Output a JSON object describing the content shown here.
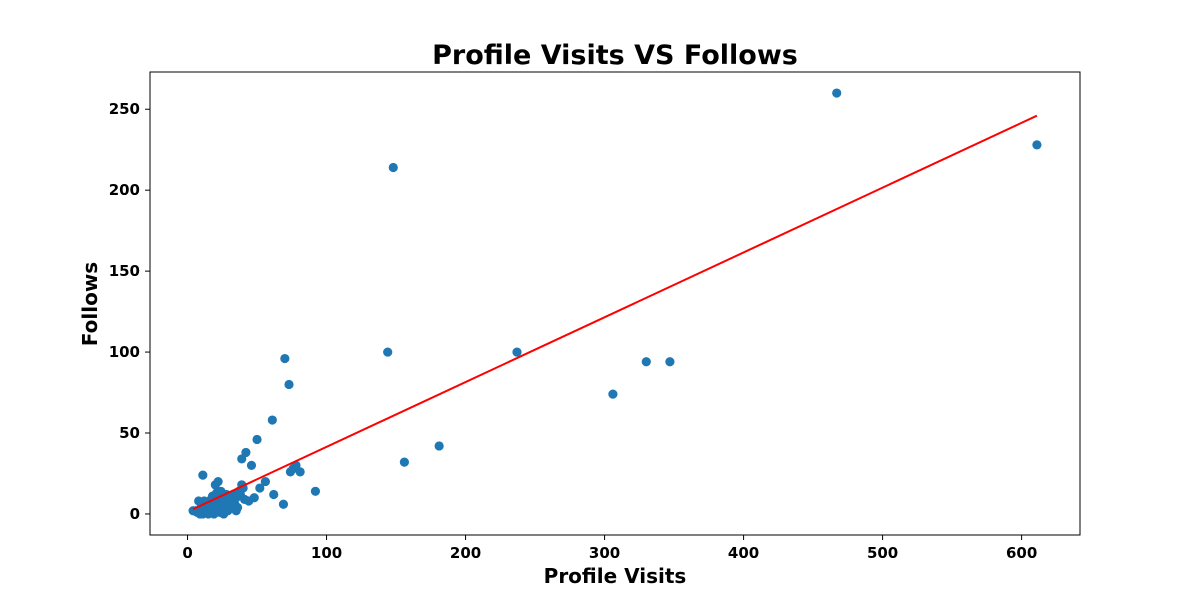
{
  "chart_data": {
    "type": "scatter",
    "title": "Profile Visits VS Follows",
    "xlabel": "Profile Visits",
    "ylabel": "Follows",
    "xlim": [
      -27,
      642
    ],
    "ylim": [
      -13,
      273
    ],
    "xticks": [
      0,
      100,
      200,
      300,
      400,
      500,
      600
    ],
    "yticks": [
      0,
      50,
      100,
      150,
      200,
      250
    ],
    "grid": false,
    "point_color": "#1f77b4",
    "line_color": "#ff0000",
    "points": [
      [
        4,
        2
      ],
      [
        6,
        2
      ],
      [
        7,
        1
      ],
      [
        8,
        8
      ],
      [
        9,
        0
      ],
      [
        10,
        5
      ],
      [
        11,
        24
      ],
      [
        11,
        0
      ],
      [
        12,
        8
      ],
      [
        13,
        3
      ],
      [
        14,
        1
      ],
      [
        15,
        6
      ],
      [
        15,
        0
      ],
      [
        16,
        4
      ],
      [
        17,
        9
      ],
      [
        17,
        2
      ],
      [
        18,
        11
      ],
      [
        19,
        3
      ],
      [
        19,
        0
      ],
      [
        20,
        7
      ],
      [
        20,
        18
      ],
      [
        21,
        13
      ],
      [
        21,
        2
      ],
      [
        22,
        5
      ],
      [
        22,
        20
      ],
      [
        23,
        9
      ],
      [
        23,
        1
      ],
      [
        24,
        14
      ],
      [
        24,
        4
      ],
      [
        25,
        6
      ],
      [
        25,
        10
      ],
      [
        26,
        3
      ],
      [
        26,
        0
      ],
      [
        27,
        8
      ],
      [
        28,
        5
      ],
      [
        28,
        12
      ],
      [
        29,
        2
      ],
      [
        30,
        7
      ],
      [
        30,
        10
      ],
      [
        31,
        4
      ],
      [
        32,
        9
      ],
      [
        33,
        12
      ],
      [
        34,
        6
      ],
      [
        35,
        2
      ],
      [
        35,
        10
      ],
      [
        36,
        4
      ],
      [
        37,
        14
      ],
      [
        38,
        12
      ],
      [
        39,
        18
      ],
      [
        39,
        34
      ],
      [
        40,
        16
      ],
      [
        41,
        9
      ],
      [
        42,
        38
      ],
      [
        44,
        8
      ],
      [
        46,
        30
      ],
      [
        48,
        10
      ],
      [
        50,
        46
      ],
      [
        52,
        16
      ],
      [
        56,
        20
      ],
      [
        61,
        58
      ],
      [
        62,
        12
      ],
      [
        69,
        6
      ],
      [
        70,
        96
      ],
      [
        73,
        80
      ],
      [
        74,
        26
      ],
      [
        76,
        28
      ],
      [
        78,
        30
      ],
      [
        81,
        26
      ],
      [
        92,
        14
      ],
      [
        144,
        100
      ],
      [
        148,
        214
      ],
      [
        156,
        32
      ],
      [
        181,
        42
      ],
      [
        237,
        100
      ],
      [
        306,
        74
      ],
      [
        330,
        94
      ],
      [
        347,
        94
      ],
      [
        467,
        260
      ],
      [
        611,
        228
      ]
    ],
    "regression": {
      "x": [
        4,
        611
      ],
      "y": [
        3,
        246
      ]
    }
  }
}
